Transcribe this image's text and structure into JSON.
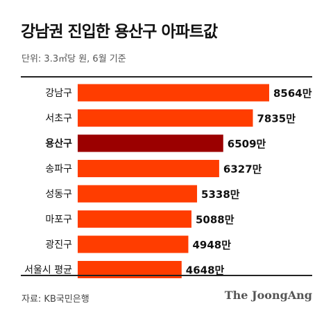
{
  "header": {
    "title": "강남권 진입한 용산구 아파트값",
    "subtitle": "단위: 3.3㎡당 원, 6월 기준"
  },
  "footer": {
    "source": "자료: KB국민은행",
    "logo": "The JoongAng"
  },
  "colors": {
    "bar": "#ff3d00",
    "highlight_bar": "#9b0000"
  },
  "chart_data": {
    "type": "bar",
    "orientation": "horizontal",
    "categories": [
      "강남구",
      "서초구",
      "용산구",
      "송파구",
      "성동구",
      "마포구",
      "광진구",
      "서울시 평균"
    ],
    "values": [
      8564,
      7835,
      6509,
      6327,
      5338,
      5088,
      4948,
      4648
    ],
    "value_labels": [
      "8564만",
      "7835만",
      "6509만",
      "6327만",
      "5338만",
      "5088만",
      "4948만",
      "4648만"
    ],
    "highlight_category": "용산구",
    "xlim": [
      0,
      10000
    ],
    "grid": false,
    "legend": "none"
  }
}
